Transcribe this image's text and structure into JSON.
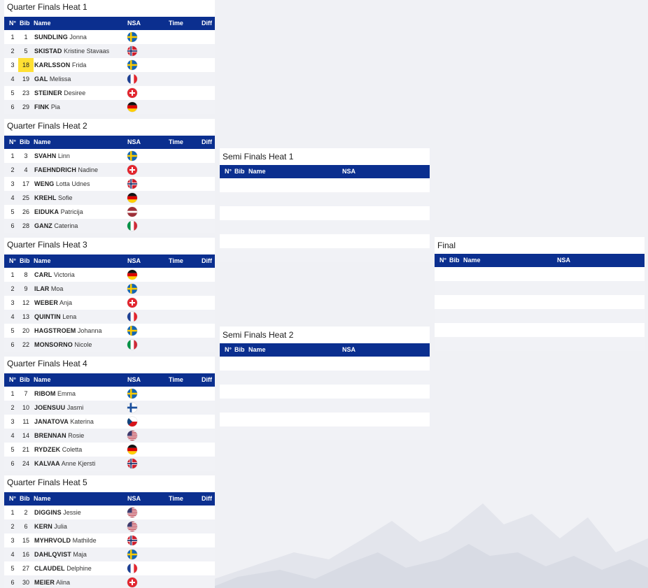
{
  "headers": {
    "no": "N°",
    "bib": "Bib",
    "name": "Name",
    "nsa": "NSA",
    "time": "Time",
    "diff": "Diff"
  },
  "quarter_finals": [
    {
      "title": "Quarter Finals Heat 1",
      "rows": [
        {
          "no": "1",
          "bib": "1",
          "last": "SUNDLING",
          "first": "Jonna",
          "flag": "swe"
        },
        {
          "no": "2",
          "bib": "5",
          "last": "SKISTAD",
          "first": "Kristine Stavaas",
          "flag": "nor"
        },
        {
          "no": "3",
          "bib": "18",
          "last": "KARLSSON",
          "first": "Frida",
          "flag": "swe",
          "highlight": true
        },
        {
          "no": "4",
          "bib": "19",
          "last": "GAL",
          "first": "Melissa",
          "flag": "fra"
        },
        {
          "no": "5",
          "bib": "23",
          "last": "STEINER",
          "first": "Desiree",
          "flag": "sui"
        },
        {
          "no": "6",
          "bib": "29",
          "last": "FINK",
          "first": "Pia",
          "flag": "ger"
        }
      ]
    },
    {
      "title": "Quarter Finals Heat 2",
      "rows": [
        {
          "no": "1",
          "bib": "3",
          "last": "SVAHN",
          "first": "Linn",
          "flag": "swe"
        },
        {
          "no": "2",
          "bib": "4",
          "last": "FAEHNDRICH",
          "first": "Nadine",
          "flag": "sui"
        },
        {
          "no": "3",
          "bib": "17",
          "last": "WENG",
          "first": "Lotta Udnes",
          "flag": "nor"
        },
        {
          "no": "4",
          "bib": "25",
          "last": "KREHL",
          "first": "Sofie",
          "flag": "ger"
        },
        {
          "no": "5",
          "bib": "26",
          "last": "EIDUKA",
          "first": "Patricija",
          "flag": "lat"
        },
        {
          "no": "6",
          "bib": "28",
          "last": "GANZ",
          "first": "Caterina",
          "flag": "ita"
        }
      ]
    },
    {
      "title": "Quarter Finals Heat 3",
      "rows": [
        {
          "no": "1",
          "bib": "8",
          "last": "CARL",
          "first": "Victoria",
          "flag": "ger"
        },
        {
          "no": "2",
          "bib": "9",
          "last": "ILAR",
          "first": "Moa",
          "flag": "swe"
        },
        {
          "no": "3",
          "bib": "12",
          "last": "WEBER",
          "first": "Anja",
          "flag": "sui"
        },
        {
          "no": "4",
          "bib": "13",
          "last": "QUINTIN",
          "first": "Lena",
          "flag": "fra"
        },
        {
          "no": "5",
          "bib": "20",
          "last": "HAGSTROEM",
          "first": "Johanna",
          "flag": "swe"
        },
        {
          "no": "6",
          "bib": "22",
          "last": "MONSORNO",
          "first": "Nicole",
          "flag": "ita"
        }
      ]
    },
    {
      "title": "Quarter Finals Heat 4",
      "rows": [
        {
          "no": "1",
          "bib": "7",
          "last": "RIBOM",
          "first": "Emma",
          "flag": "swe"
        },
        {
          "no": "2",
          "bib": "10",
          "last": "JOENSUU",
          "first": "Jasmi",
          "flag": "fin"
        },
        {
          "no": "3",
          "bib": "11",
          "last": "JANATOVA",
          "first": "Katerina",
          "flag": "cze"
        },
        {
          "no": "4",
          "bib": "14",
          "last": "BRENNAN",
          "first": "Rosie",
          "flag": "usa"
        },
        {
          "no": "5",
          "bib": "21",
          "last": "RYDZEK",
          "first": "Coletta",
          "flag": "ger"
        },
        {
          "no": "6",
          "bib": "24",
          "last": "KALVAA",
          "first": "Anne Kjersti",
          "flag": "nor"
        }
      ]
    },
    {
      "title": "Quarter Finals Heat 5",
      "rows": [
        {
          "no": "1",
          "bib": "2",
          "last": "DIGGINS",
          "first": "Jessie",
          "flag": "usa"
        },
        {
          "no": "2",
          "bib": "6",
          "last": "KERN",
          "first": "Julia",
          "flag": "usa"
        },
        {
          "no": "3",
          "bib": "15",
          "last": "MYHRVOLD",
          "first": "Mathilde",
          "flag": "nor"
        },
        {
          "no": "4",
          "bib": "16",
          "last": "DAHLQVIST",
          "first": "Maja",
          "flag": "swe"
        },
        {
          "no": "5",
          "bib": "27",
          "last": "CLAUDEL",
          "first": "Delphine",
          "flag": "fra"
        },
        {
          "no": "6",
          "bib": "30",
          "last": "MEIER",
          "first": "Alina",
          "flag": "sui"
        }
      ]
    }
  ],
  "semi_finals": [
    {
      "title": "Semi Finals Heat 1"
    },
    {
      "title": "Semi Finals Heat 2"
    }
  ],
  "final": {
    "title": "Final"
  },
  "colors": {
    "header_bg": "#0b2f8f",
    "bib_highlight": "#ffe033",
    "page_bg": "#f0f1f5"
  }
}
